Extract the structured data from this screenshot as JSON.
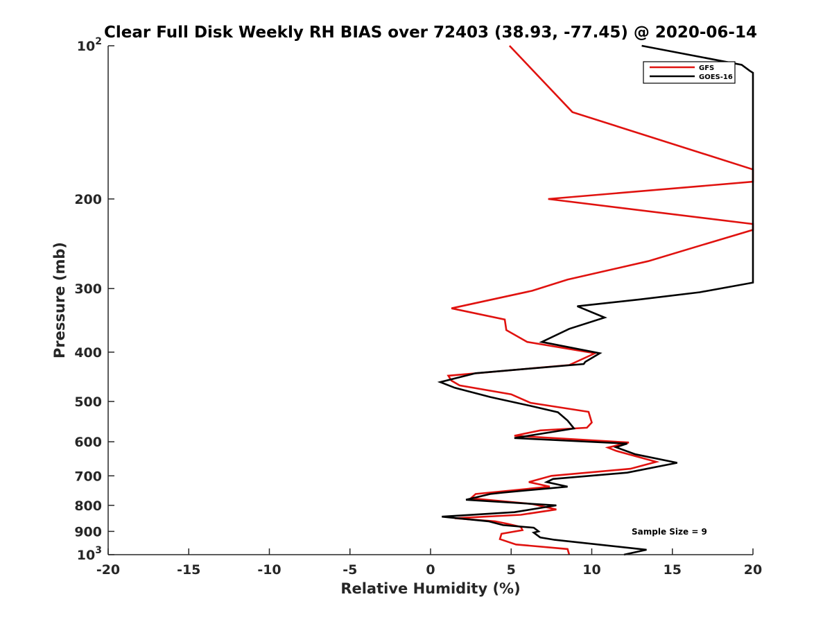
{
  "chart_data": {
    "type": "line",
    "title": "Clear Full Disk Weekly RH BIAS over 72403 (38.93, -77.45) @ 2020-06-14",
    "xlabel": "Relative Humidity (%)",
    "ylabel": "Pressure (mb)",
    "xlim": [
      -20,
      20
    ],
    "ylim": [
      100,
      1000
    ],
    "y_scale": "log",
    "y_reversed": true,
    "x_ticks": [
      "-20",
      "-15",
      "-10",
      "-5",
      "0",
      "5",
      "10",
      "15",
      "20"
    ],
    "x_tick_values": [
      -20,
      -15,
      -10,
      -5,
      0,
      5,
      10,
      15,
      20
    ],
    "y_ticks": [
      {
        "value": 100,
        "base": "10",
        "exp": "2"
      },
      {
        "value": 200,
        "base": "200",
        "exp": ""
      },
      {
        "value": 300,
        "base": "300",
        "exp": ""
      },
      {
        "value": 400,
        "base": "400",
        "exp": ""
      },
      {
        "value": 500,
        "base": "500",
        "exp": ""
      },
      {
        "value": 600,
        "base": "600",
        "exp": ""
      },
      {
        "value": 700,
        "base": "700",
        "exp": ""
      },
      {
        "value": 800,
        "base": "800",
        "exp": ""
      },
      {
        "value": 900,
        "base": "900",
        "exp": ""
      },
      {
        "value": 1000,
        "base": "10",
        "exp": "3"
      }
    ],
    "grid": false,
    "legend_position": "top-right",
    "annotation": "Sample Size = 9",
    "series": [
      {
        "name": "GFS",
        "color": "#e0120f",
        "points": [
          [
            4.9,
            100
          ],
          [
            8.8,
            135
          ],
          [
            20,
            175
          ],
          [
            20,
            185
          ],
          [
            7.3,
            200
          ],
          [
            20,
            224
          ],
          [
            20,
            230
          ],
          [
            17.1,
            245
          ],
          [
            13.5,
            265
          ],
          [
            8.5,
            288
          ],
          [
            6.3,
            303
          ],
          [
            1.3,
            328
          ],
          [
            4.6,
            345
          ],
          [
            4.7,
            362
          ],
          [
            6,
            382
          ],
          [
            10.2,
            402
          ],
          [
            8.6,
            424
          ],
          [
            1.1,
            445
          ],
          [
            1.3,
            455
          ],
          [
            1.8,
            465
          ],
          [
            5,
            484
          ],
          [
            6.2,
            503
          ],
          [
            9.8,
            524
          ],
          [
            10,
            550
          ],
          [
            9.7,
            563
          ],
          [
            6.8,
            570
          ],
          [
            5.2,
            584
          ],
          [
            12.3,
            602
          ],
          [
            11,
            616
          ],
          [
            11.5,
            625
          ],
          [
            14,
            657
          ],
          [
            12.4,
            678
          ],
          [
            7.5,
            700
          ],
          [
            6.1,
            720
          ],
          [
            7.4,
            735
          ],
          [
            2.8,
            760
          ],
          [
            2.5,
            775
          ],
          [
            6.3,
            795
          ],
          [
            7.8,
            815
          ],
          [
            5.6,
            835
          ],
          [
            1.5,
            848
          ],
          [
            4,
            860
          ],
          [
            4.8,
            870
          ],
          [
            5.6,
            882
          ],
          [
            5.7,
            895
          ],
          [
            4.4,
            910
          ],
          [
            4.3,
            932
          ],
          [
            5.3,
            955
          ],
          [
            8.5,
            975
          ],
          [
            8.6,
            1000
          ]
        ]
      },
      {
        "name": "GOES-16",
        "color": "#000000",
        "points": [
          [
            13.1,
            100
          ],
          [
            19.3,
            109
          ],
          [
            19.8,
            112
          ],
          [
            20,
            113
          ],
          [
            20,
            292
          ],
          [
            16.7,
            305
          ],
          [
            13,
            315
          ],
          [
            9.1,
            325
          ],
          [
            10.8,
            342
          ],
          [
            8.6,
            360
          ],
          [
            6.9,
            382
          ],
          [
            10.5,
            402
          ],
          [
            9.6,
            418
          ],
          [
            9.5,
            422
          ],
          [
            2.8,
            440
          ],
          [
            0.6,
            458
          ],
          [
            1.5,
            470
          ],
          [
            3.7,
            490
          ],
          [
            6.2,
            510
          ],
          [
            7.9,
            525
          ],
          [
            8.5,
            545
          ],
          [
            8.9,
            565
          ],
          [
            5.2,
            590
          ],
          [
            12.2,
            605
          ],
          [
            11.5,
            615
          ],
          [
            12.7,
            635
          ],
          [
            15.3,
            660
          ],
          [
            12.2,
            690
          ],
          [
            7.6,
            710
          ],
          [
            7.2,
            720
          ],
          [
            8.5,
            735
          ],
          [
            4.5,
            755
          ],
          [
            3.7,
            760
          ],
          [
            2.2,
            780
          ],
          [
            7.8,
            800
          ],
          [
            5.2,
            825
          ],
          [
            0.7,
            842
          ],
          [
            3.6,
            860
          ],
          [
            4.5,
            875
          ],
          [
            6.4,
            885
          ],
          [
            6.7,
            900
          ],
          [
            6.4,
            905
          ],
          [
            6.8,
            925
          ],
          [
            7.7,
            935
          ],
          [
            13.4,
            978
          ],
          [
            12,
            1000
          ]
        ]
      }
    ]
  }
}
